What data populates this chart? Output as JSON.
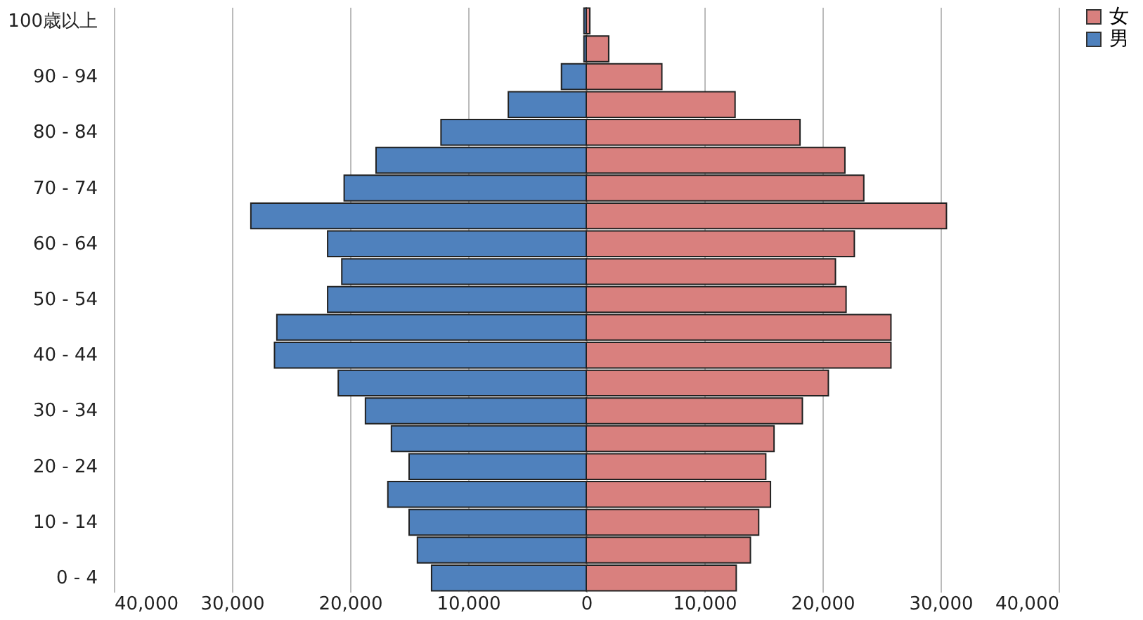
{
  "chart_data": {
    "type": "bar",
    "orientation": "horizontal",
    "categories": [
      "100歳以上",
      null,
      "90 - 94",
      null,
      "80 - 84",
      null,
      "70 - 74",
      null,
      "60 - 64",
      null,
      "50 - 54",
      null,
      "40 - 44",
      null,
      "30 - 34",
      null,
      "20 - 24",
      null,
      "10 - 14",
      null,
      "0 - 4"
    ],
    "series": [
      {
        "name": "女",
        "color": "#d9807e",
        "values": [
          300,
          1900,
          6400,
          12600,
          18100,
          21900,
          23500,
          30500,
          22700,
          21100,
          22000,
          25800,
          25800,
          20500,
          18300,
          15900,
          15200,
          15600,
          14600,
          13900,
          12700
        ]
      },
      {
        "name": "男",
        "color": "#4f81bd",
        "values": [
          -200,
          -200,
          -2100,
          -6600,
          -12300,
          -17800,
          -20500,
          -28400,
          -21900,
          -20700,
          -21900,
          -26200,
          -26400,
          -21000,
          -18700,
          -16500,
          -15000,
          -16800,
          -15000,
          -14300,
          -13100
        ]
      }
    ],
    "xlim": [
      -40000,
      40000
    ],
    "xticks": [
      {
        "value": -40000,
        "label": "40,000"
      },
      {
        "value": -30000,
        "label": "30,000"
      },
      {
        "value": -20000,
        "label": "20,000"
      },
      {
        "value": -10000,
        "label": "10,000"
      },
      0,
      {
        "value": 10000,
        "label": "10,000"
      },
      {
        "value": 20000,
        "label": "20,000"
      },
      {
        "value": 30000,
        "label": "30,000"
      },
      {
        "value": 40000,
        "label": "40,000"
      }
    ],
    "grid": "x",
    "legend": "right",
    "stacked": true
  }
}
